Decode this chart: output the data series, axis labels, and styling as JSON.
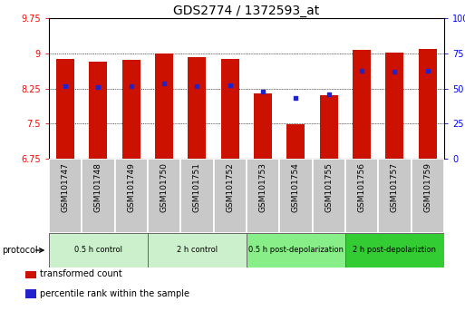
{
  "title": "GDS2774 / 1372593_at",
  "samples": [
    "GSM101747",
    "GSM101748",
    "GSM101749",
    "GSM101750",
    "GSM101751",
    "GSM101752",
    "GSM101753",
    "GSM101754",
    "GSM101755",
    "GSM101756",
    "GSM101757",
    "GSM101759"
  ],
  "bar_heights": [
    8.87,
    8.83,
    8.86,
    9.0,
    8.92,
    8.88,
    8.15,
    7.48,
    8.1,
    9.07,
    9.02,
    9.09
  ],
  "blue_dot_y": [
    8.3,
    8.28,
    8.29,
    8.35,
    8.3,
    8.31,
    8.18,
    8.05,
    8.13,
    8.63,
    8.6,
    8.62
  ],
  "ylim": [
    6.75,
    9.75
  ],
  "yticks_left": [
    6.75,
    7.5,
    8.25,
    9.0,
    9.75
  ],
  "ytick_labels_left": [
    "6.75",
    "7.5",
    "8.25",
    "9",
    "9.75"
  ],
  "yticks_right_vals": [
    0,
    25,
    50,
    75,
    100
  ],
  "ytick_labels_right": [
    "0",
    "25",
    "50",
    "75",
    "100%"
  ],
  "bar_color": "#cc1100",
  "dot_color": "#2222cc",
  "protocol_groups": [
    {
      "label": "0.5 h control",
      "start": 0,
      "end": 3,
      "color": "#ccf0cc"
    },
    {
      "label": "2 h control",
      "start": 3,
      "end": 6,
      "color": "#ccf0cc"
    },
    {
      "label": "0.5 h post-depolarization",
      "start": 6,
      "end": 9,
      "color": "#88ee88"
    },
    {
      "label": "2 h post-depolariztion",
      "start": 9,
      "end": 12,
      "color": "#33cc33"
    }
  ],
  "protocol_label": "protocol",
  "legend_items": [
    {
      "label": "transformed count",
      "color": "#cc1100"
    },
    {
      "label": "percentile rank within the sample",
      "color": "#2222cc"
    }
  ],
  "bar_width": 0.55,
  "title_fontsize": 10,
  "tick_fontsize": 7,
  "label_fontsize": 6.5,
  "label_bg_color": "#c8c8c8"
}
